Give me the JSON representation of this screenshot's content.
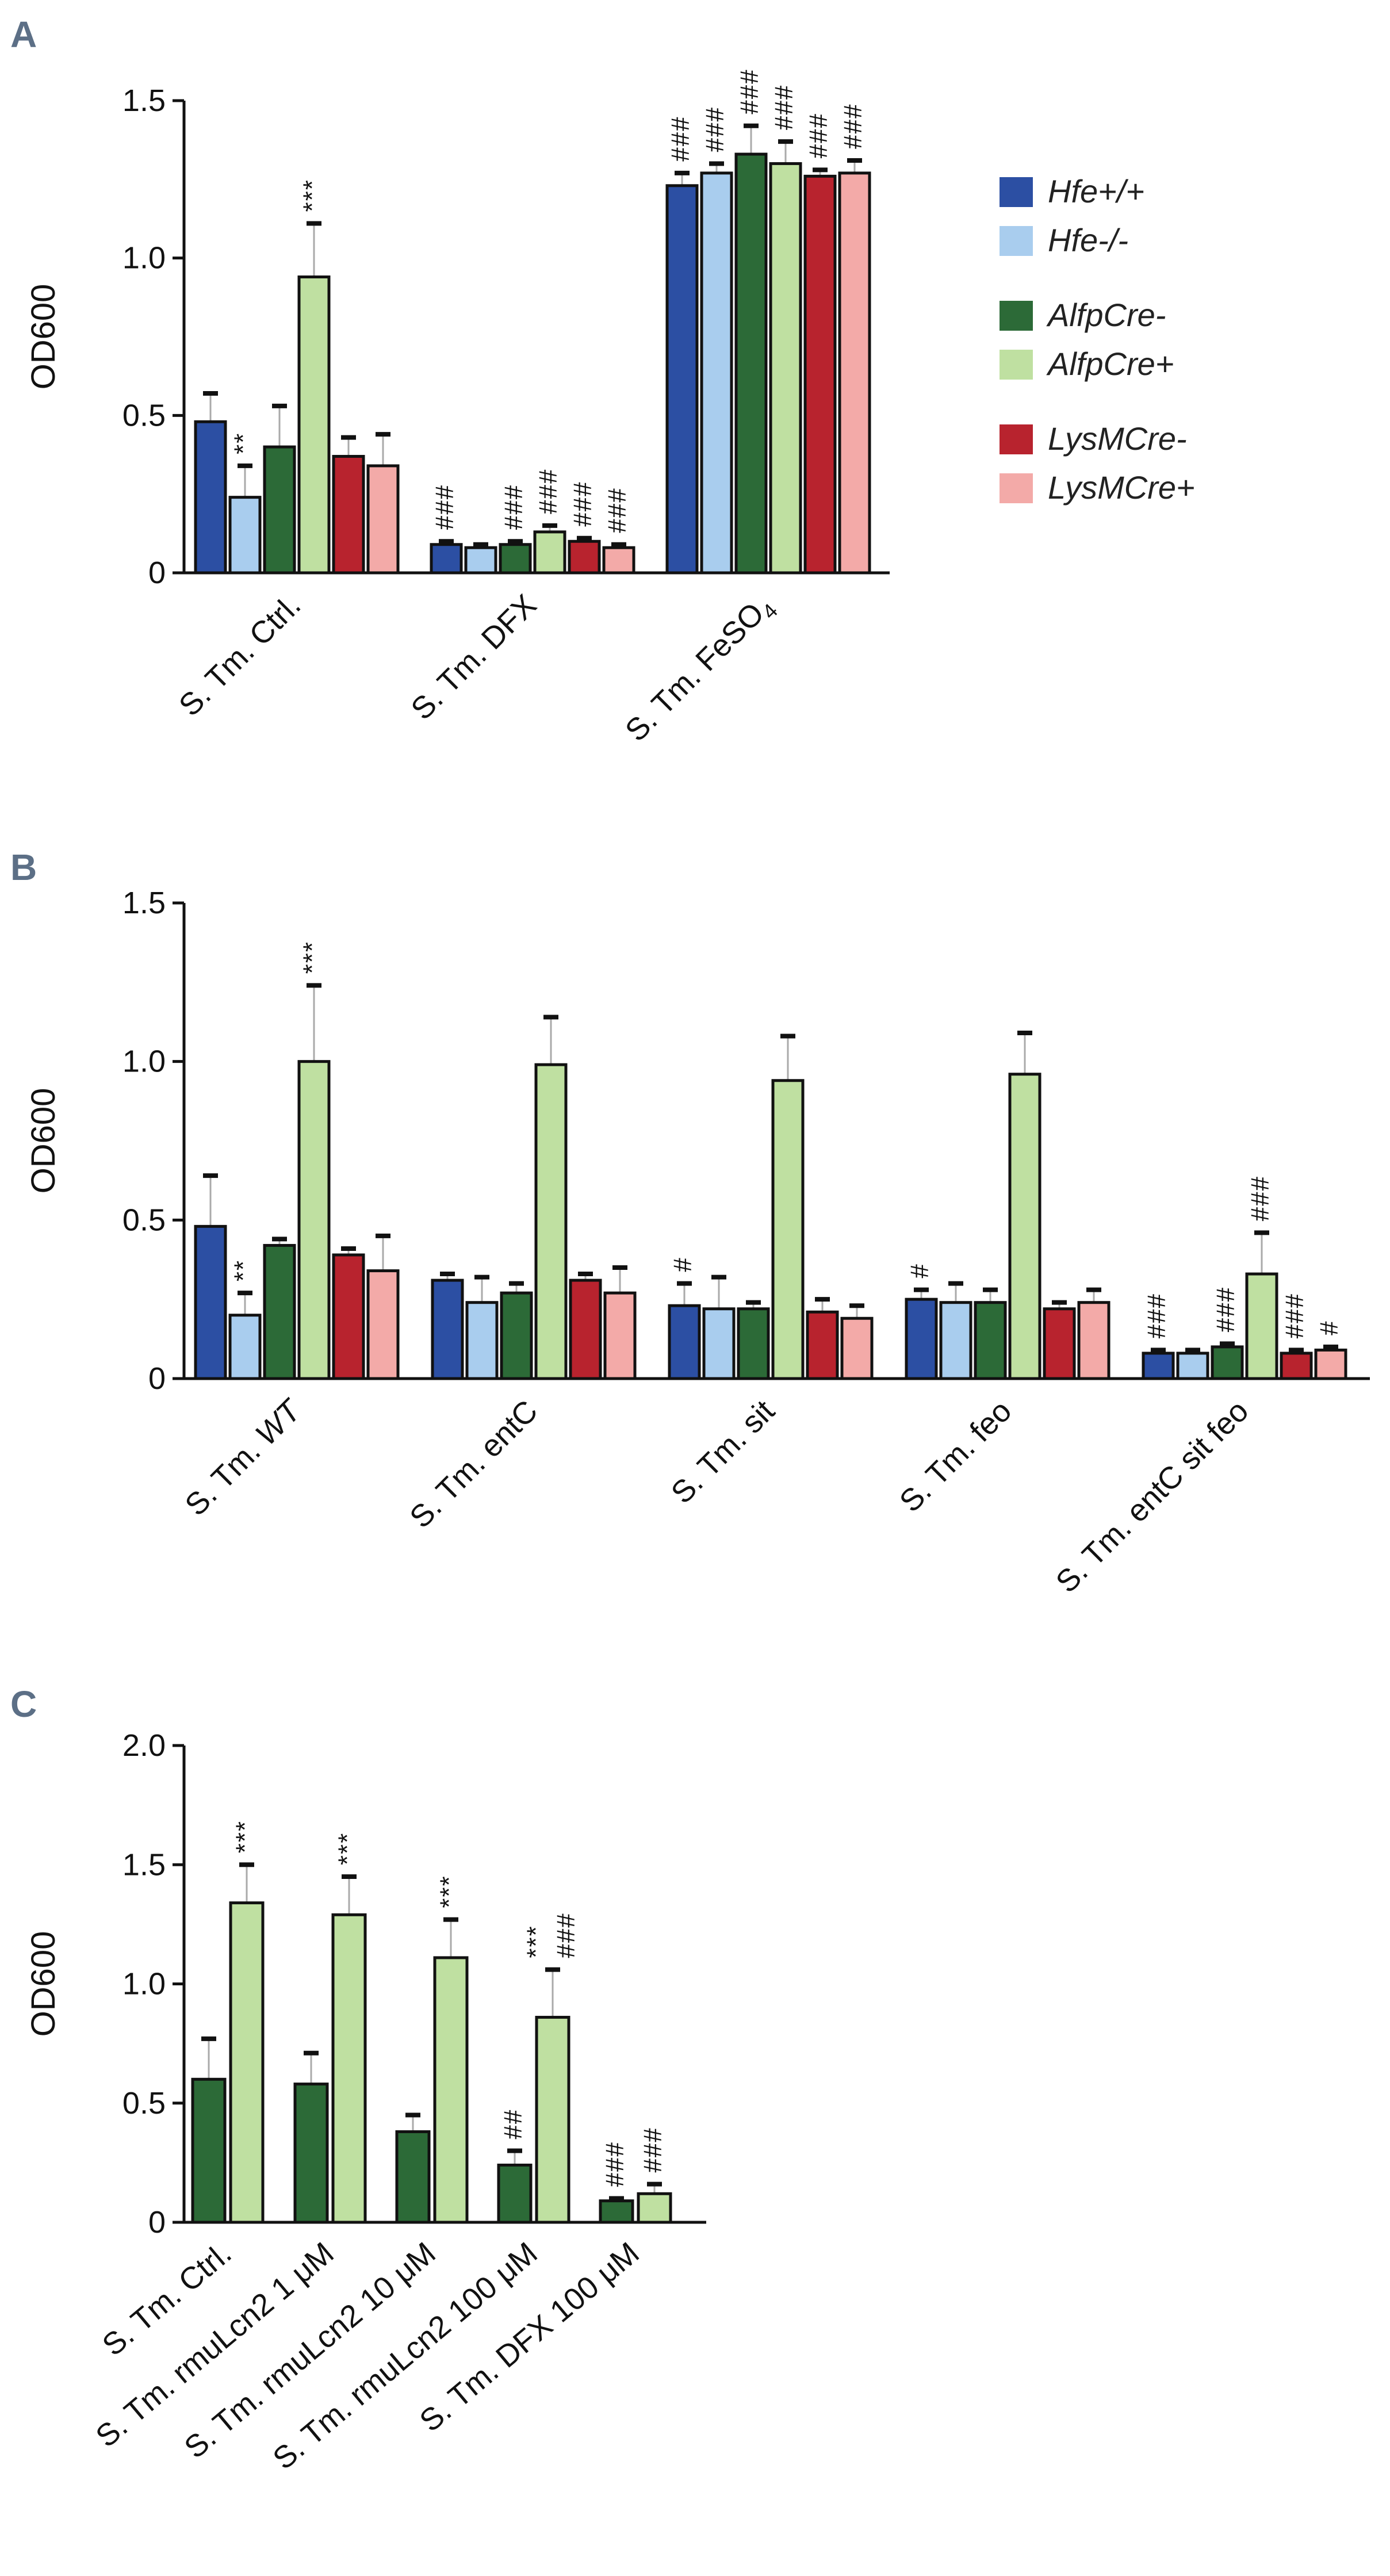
{
  "colors": {
    "Hfe+/+": "#2c4fa3",
    "Hfe-/-": "#a9cdee",
    "AlfpCre-": "#2c6a37",
    "AlfpCre+": "#bfe0a1",
    "LysMCre-": "#b8232e",
    "LysMCre+": "#f3aaa8"
  },
  "legend": {
    "groups": [
      [
        "Hfe+/+",
        "Hfe-/-"
      ],
      [
        "AlfpCre-",
        "AlfpCre+"
      ],
      [
        "LysMCre-",
        "LysMCre+"
      ]
    ]
  },
  "chart_data": [
    {
      "panel": "A",
      "type": "bar",
      "ylabel": "OD600",
      "ylim": [
        0,
        1.5
      ],
      "yticks": [
        {
          "v": 0,
          "label": "0"
        },
        {
          "v": 0.5,
          "label": "0.5"
        },
        {
          "v": 1.0,
          "label": "1.0"
        },
        {
          "v": 1.5,
          "label": "1.5"
        }
      ],
      "categories": [
        {
          "parts": [
            {
              "t": "S. Tm.  Ctrl.",
              "i": false
            }
          ]
        },
        {
          "parts": [
            {
              "t": "S. Tm.  DFX",
              "i": false
            }
          ]
        },
        {
          "parts": [
            {
              "t": "S. Tm.  FeSO",
              "i": false
            }
          ],
          "sub": "4"
        }
      ],
      "series": [
        {
          "name": "Hfe+/+",
          "values": [
            0.48,
            0.09,
            1.23
          ],
          "errors": [
            0.09,
            0.01,
            0.04
          ],
          "annot": [
            "",
            "###",
            "###"
          ]
        },
        {
          "name": "Hfe-/-",
          "values": [
            0.24,
            0.08,
            1.27
          ],
          "errors": [
            0.1,
            0.01,
            0.03
          ],
          "annot": [
            "**",
            "",
            "###"
          ]
        },
        {
          "name": "AlfpCre-",
          "values": [
            0.4,
            0.09,
            1.33
          ],
          "errors": [
            0.13,
            0.01,
            0.09
          ],
          "annot": [
            "",
            "###",
            "###"
          ]
        },
        {
          "name": "AlfpCre+",
          "values": [
            0.94,
            0.13,
            1.3
          ],
          "errors": [
            0.17,
            0.02,
            0.07
          ],
          "annot": [
            "***",
            "###",
            "###"
          ]
        },
        {
          "name": "LysMCre-",
          "values": [
            0.37,
            0.1,
            1.26
          ],
          "errors": [
            0.06,
            0.01,
            0.02
          ],
          "annot": [
            "",
            "###",
            "###"
          ]
        },
        {
          "name": "LysMCre+",
          "values": [
            0.34,
            0.08,
            1.27
          ],
          "errors": [
            0.1,
            0.01,
            0.04
          ],
          "annot": [
            "",
            "###",
            "###"
          ]
        }
      ]
    },
    {
      "panel": "B",
      "type": "bar",
      "ylabel": "OD600",
      "ylim": [
        0,
        1.5
      ],
      "yticks": [
        {
          "v": 0,
          "label": "0"
        },
        {
          "v": 0.5,
          "label": "0.5"
        },
        {
          "v": 1.0,
          "label": "1.0"
        },
        {
          "v": 1.5,
          "label": "1.5"
        }
      ],
      "categories": [
        {
          "parts": [
            {
              "t": "S. Tm. ",
              "i": false
            },
            {
              "t": "WT",
              "i": true
            }
          ]
        },
        {
          "parts": [
            {
              "t": "S. Tm.  entC",
              "i": false
            }
          ]
        },
        {
          "parts": [
            {
              "t": "S. Tm.  sit",
              "i": false
            }
          ]
        },
        {
          "parts": [
            {
              "t": "S. Tm.  feo",
              "i": false
            }
          ]
        },
        {
          "parts": [
            {
              "t": "S. Tm.  entC sit feo",
              "i": false
            }
          ]
        }
      ],
      "series": [
        {
          "name": "Hfe+/+",
          "values": [
            0.48,
            0.31,
            0.23,
            0.25,
            0.08
          ],
          "errors": [
            0.16,
            0.02,
            0.07,
            0.03,
            0.01
          ],
          "annot": [
            "",
            "",
            "#",
            "#",
            "###"
          ]
        },
        {
          "name": "Hfe-/-",
          "values": [
            0.2,
            0.24,
            0.22,
            0.24,
            0.08
          ],
          "errors": [
            0.07,
            0.08,
            0.1,
            0.06,
            0.01
          ],
          "annot": [
            "**",
            "",
            "",
            "",
            ""
          ]
        },
        {
          "name": "AlfpCre-",
          "values": [
            0.42,
            0.27,
            0.22,
            0.24,
            0.1
          ],
          "errors": [
            0.02,
            0.03,
            0.02,
            0.04,
            0.01
          ],
          "annot": [
            "",
            "",
            "",
            "",
            "###"
          ]
        },
        {
          "name": "AlfpCre+",
          "values": [
            1.0,
            0.99,
            0.94,
            0.96,
            0.33
          ],
          "errors": [
            0.24,
            0.15,
            0.14,
            0.13,
            0.13
          ],
          "annot": [
            "***",
            "",
            "",
            "",
            "###"
          ]
        },
        {
          "name": "LysMCre-",
          "values": [
            0.39,
            0.31,
            0.21,
            0.22,
            0.08
          ],
          "errors": [
            0.02,
            0.02,
            0.04,
            0.02,
            0.01
          ],
          "annot": [
            "",
            "",
            "",
            "",
            "###"
          ]
        },
        {
          "name": "LysMCre+",
          "values": [
            0.34,
            0.27,
            0.19,
            0.24,
            0.09
          ],
          "errors": [
            0.11,
            0.08,
            0.04,
            0.04,
            0.01
          ],
          "annot": [
            "",
            "",
            "",
            "",
            "#"
          ]
        }
      ]
    },
    {
      "panel": "C",
      "type": "bar",
      "ylabel": "OD600",
      "ylim": [
        0,
        2.0
      ],
      "yticks": [
        {
          "v": 0,
          "label": "0"
        },
        {
          "v": 0.5,
          "label": "0.5"
        },
        {
          "v": 1.0,
          "label": "1.0"
        },
        {
          "v": 1.5,
          "label": "1.5"
        },
        {
          "v": 2.0,
          "label": "2.0"
        }
      ],
      "categories": [
        {
          "parts": [
            {
              "t": "S. Tm.  Ctrl.",
              "i": false
            }
          ]
        },
        {
          "parts": [
            {
              "t": "S. Tm.  rmuLcn2 1 μM",
              "i": false
            }
          ]
        },
        {
          "parts": [
            {
              "t": "S. Tm.  rmuLcn2 10 μM",
              "i": false
            }
          ]
        },
        {
          "parts": [
            {
              "t": "S. Tm.  rmuLcn2 100 μM",
              "i": false
            }
          ]
        },
        {
          "parts": [
            {
              "t": "S. Tm.  DFX 100 μM",
              "i": false
            }
          ]
        }
      ],
      "series": [
        {
          "name": "AlfpCre-",
          "values": [
            0.6,
            0.58,
            0.38,
            0.24,
            0.09
          ],
          "errors": [
            0.17,
            0.13,
            0.07,
            0.06,
            0.01
          ],
          "annot": [
            "",
            "",
            "",
            "##",
            "###"
          ]
        },
        {
          "name": "AlfpCre+",
          "values": [
            1.34,
            1.29,
            1.11,
            0.86,
            0.12
          ],
          "errors": [
            0.16,
            0.16,
            0.16,
            0.2,
            0.04
          ],
          "annot": [
            "***",
            "***",
            "***",
            "***|###",
            "###"
          ]
        }
      ]
    }
  ]
}
